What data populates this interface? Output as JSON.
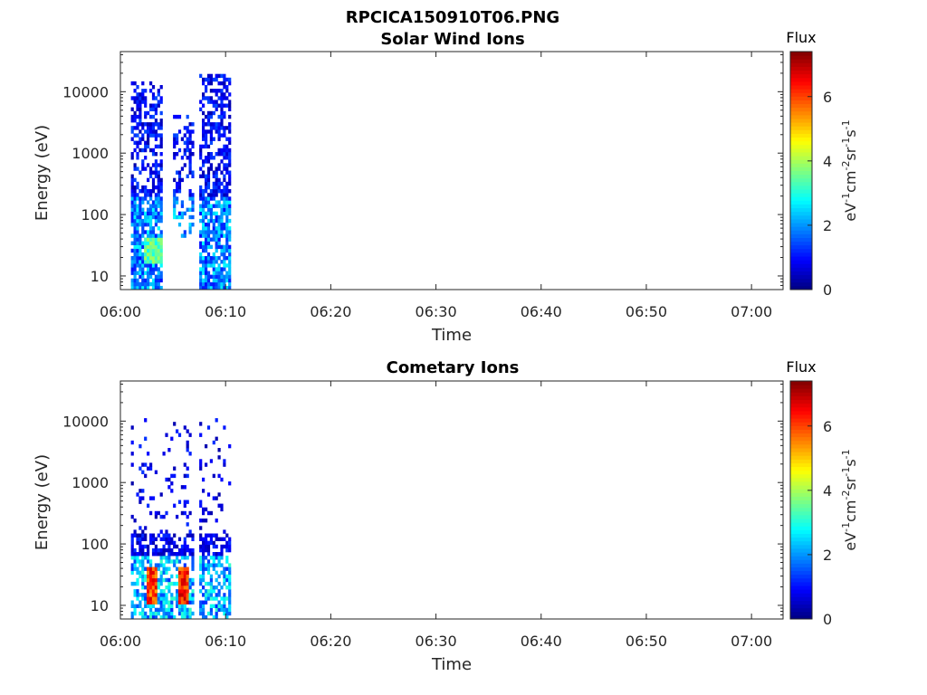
{
  "figure": {
    "title": "RPCICA150910T06.PNG",
    "colormap": "jet",
    "colors": {
      "axis": "#262626",
      "background": "#ffffff"
    }
  },
  "chart_data": [
    {
      "type": "heatmap",
      "title": "Solar Wind Ions",
      "xlabel": "Time",
      "ylabel": "Energy (eV)",
      "xlim": [
        "06:00",
        "07:03"
      ],
      "ylim": [
        6,
        45000
      ],
      "yscale": "log",
      "x_ticks": [
        "06:00",
        "06:10",
        "06:20",
        "06:30",
        "06:40",
        "06:50",
        "07:00"
      ],
      "y_ticks": [
        "10",
        "100",
        "1000",
        "10000"
      ],
      "colorbar": {
        "title": "Flux",
        "label": "eV-1cm-2sr-1s-1",
        "range": [
          0,
          7.4
        ],
        "ticks": [
          "0",
          "2",
          "4",
          "6"
        ]
      },
      "data_coverage": [
        "06:01",
        "06:10.5"
      ],
      "active_intervals": [
        {
          "start": "06:01",
          "end": "06:04",
          "emax": 15000
        },
        {
          "start": "06:05",
          "end": "06:07",
          "emax": 4000,
          "sparse": true
        },
        {
          "start": "06:07.5",
          "end": "06:10.5",
          "emax": 20000
        }
      ],
      "peak_flux_region": {
        "time": "06:03",
        "energy_ev": [
          15,
          40
        ],
        "flux": 4
      }
    },
    {
      "type": "heatmap",
      "title": "Cometary Ions",
      "xlabel": "Time",
      "ylabel": "Energy (eV)",
      "xlim": [
        "06:00",
        "07:03"
      ],
      "ylim": [
        6,
        45000
      ],
      "yscale": "log",
      "x_ticks": [
        "06:00",
        "06:10",
        "06:20",
        "06:30",
        "06:40",
        "06:50",
        "07:00"
      ],
      "y_ticks": [
        "10",
        "100",
        "1000",
        "10000"
      ],
      "colorbar": {
        "title": "Flux",
        "label": "eV-1cm-2sr-1s-1",
        "range": [
          0,
          7.4
        ],
        "ticks": [
          "0",
          "2",
          "4",
          "6"
        ]
      },
      "data_coverage": [
        "06:01",
        "06:10.5"
      ],
      "hot_spots": [
        {
          "time_start": "06:02.5",
          "time_end": "06:03.5",
          "energy_ev": [
            10,
            40
          ],
          "flux": 6.8
        },
        {
          "time_start": "06:05.5",
          "time_end": "06:06.5",
          "energy_ev": [
            10,
            40
          ],
          "flux": 7.0
        }
      ]
    }
  ]
}
